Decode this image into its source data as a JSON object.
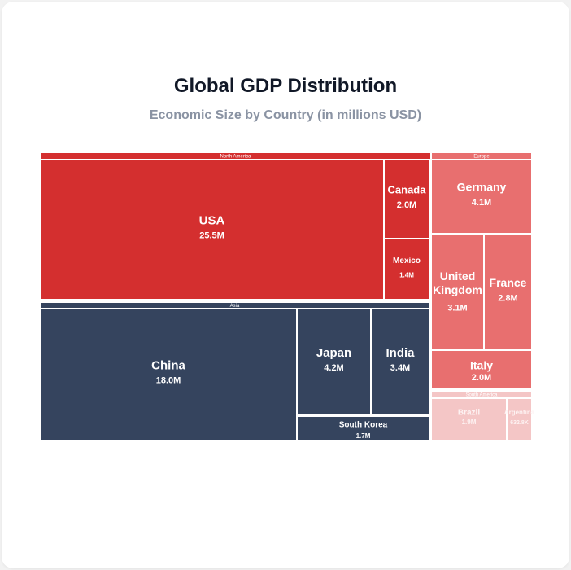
{
  "chart_data": {
    "type": "treemap",
    "title": "Global GDP Distribution",
    "subtitle": "Economic Size by Country (in millions USD)",
    "groups": [
      {
        "name": "North America",
        "color": "#d42f2f",
        "children": [
          {
            "name": "USA",
            "label": "25.5M",
            "value": 25500000
          },
          {
            "name": "Canada",
            "label": "2.0M",
            "value": 2000000
          },
          {
            "name": "Mexico",
            "label": "1.4M",
            "value": 1400000
          }
        ]
      },
      {
        "name": "Asia",
        "color": "#35445e",
        "children": [
          {
            "name": "China",
            "label": "18.0M",
            "value": 18000000
          },
          {
            "name": "Japan",
            "label": "4.2M",
            "value": 4200000
          },
          {
            "name": "India",
            "label": "3.4M",
            "value": 3400000
          },
          {
            "name": "South Korea",
            "label": "1.7M",
            "value": 1700000
          }
        ]
      },
      {
        "name": "Europe",
        "color": "#e86f6f",
        "children": [
          {
            "name": "Germany",
            "label": "4.1M",
            "value": 4100000
          },
          {
            "name": "United Kingdom",
            "label": "3.1M",
            "value": 3100000
          },
          {
            "name": "France",
            "label": "2.8M",
            "value": 2800000
          },
          {
            "name": "Italy",
            "label": "2.0M",
            "value": 2000000
          }
        ]
      },
      {
        "name": "South America",
        "color": "#f4c6c6",
        "children": [
          {
            "name": "Brazil",
            "label": "1.9M",
            "value": 1900000
          },
          {
            "name": "Argentina",
            "label": "632.8K",
            "value": 632800
          }
        ]
      }
    ]
  }
}
